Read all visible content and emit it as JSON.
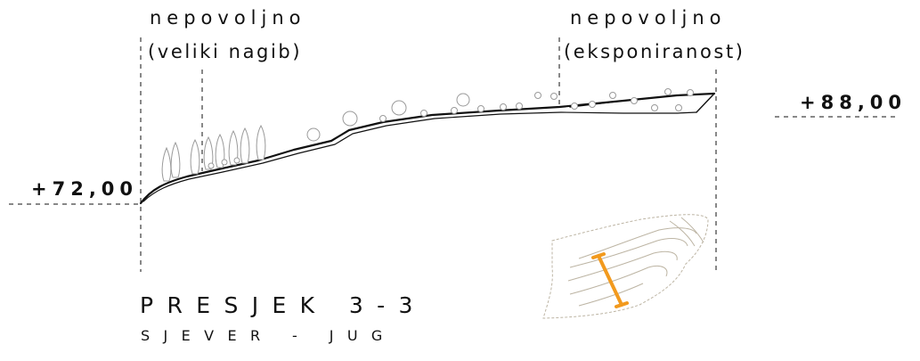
{
  "labels": {
    "left_condition": "nepovoljno",
    "left_reason": "(veliki nagib)",
    "right_condition": "nepovoljno",
    "right_reason": "(eksponiranost)"
  },
  "elevations": {
    "left": "+72,00",
    "right": "+88,00"
  },
  "title": {
    "main": "PRESJEK 3-3",
    "direction": "SJEVER - JUG"
  },
  "colors": {
    "line": "#111111",
    "tree": "#9a9a9a",
    "minimap_contour": "#bdb5a4",
    "section_marker": "#f29a1e"
  }
}
